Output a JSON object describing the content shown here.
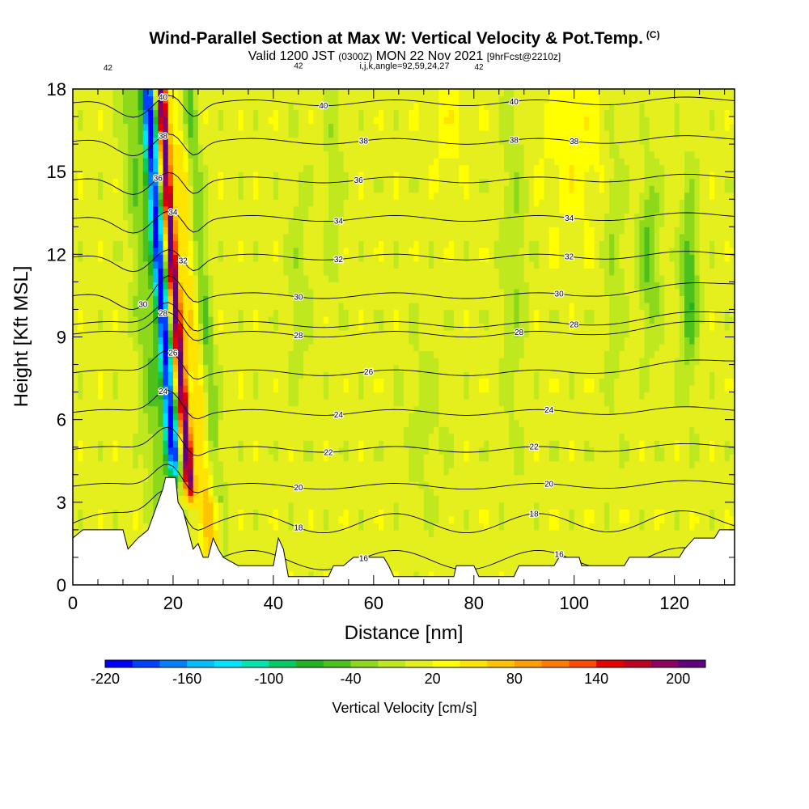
{
  "header": {
    "title": "Wind-Parallel Section at Max W: Vertical Velocity & Pot.Temp.",
    "title_mark": "(C)",
    "valid_prefix": "Valid 1200 JST",
    "valid_utc": "(0300Z)",
    "valid_date": "MON 22 Nov 2021",
    "forecast": "[9hrFcst@2210z]",
    "indices": "i,j,k,angle=92,59,24,27"
  },
  "chart_data": {
    "type": "heatmap",
    "xlabel": "Distance [nm]",
    "ylabel": "Height [Kft MSL]",
    "xlim": [
      0,
      132
    ],
    "ylim": [
      0,
      18
    ],
    "x_ticks": [
      0,
      20,
      40,
      60,
      80,
      100,
      120
    ],
    "y_ticks": [
      0,
      3,
      6,
      9,
      12,
      15,
      18
    ],
    "x_tick_labels": [
      "0",
      "20",
      "40",
      "60",
      "80",
      "100",
      "120"
    ],
    "y_tick_labels": [
      "0",
      "3",
      "6",
      "9",
      "12",
      "15",
      "18"
    ],
    "colorbar": {
      "label": "Vertical Velocity [cm/s]",
      "tick_labels": [
        "-220",
        "-160",
        "-100",
        "-40",
        "20",
        "80",
        "140",
        "200"
      ],
      "tick_values": [
        -220,
        -160,
        -100,
        -40,
        20,
        80,
        140,
        200
      ],
      "min": -220,
      "max": 220,
      "colors": [
        "#0000ff",
        "#0040ff",
        "#0080ff",
        "#00bfff",
        "#00e5ff",
        "#00e5b0",
        "#00cc66",
        "#22b222",
        "#4cc01c",
        "#8ed81c",
        "#c0e81e",
        "#e6ef1e",
        "#ffff00",
        "#ffe400",
        "#ffc400",
        "#ff9f00",
        "#ff7a00",
        "#ff4a00",
        "#e60000",
        "#c00020",
        "#900060",
        "#600080"
      ]
    },
    "theta_contours": [
      {
        "value": 16,
        "label": "16",
        "labels_at": [
          58,
          97
        ]
      },
      {
        "value": 18,
        "label": "18",
        "labels_at": [
          45,
          92
        ]
      },
      {
        "value": 20,
        "label": "20",
        "labels_at": [
          45,
          95
        ]
      },
      {
        "value": 22,
        "label": "22",
        "labels_at": [
          51,
          92
        ]
      },
      {
        "value": 24,
        "label": "24",
        "labels_at": [
          18,
          53,
          95
        ]
      },
      {
        "value": 26,
        "label": "26",
        "labels_at": [
          20,
          59
        ]
      },
      {
        "value": 28,
        "label": "28",
        "labels_at": [
          18,
          45,
          89
        ]
      },
      {
        "value": 28,
        "label": "28",
        "labels_at": [
          100
        ]
      },
      {
        "value": 30,
        "label": "30",
        "labels_at": [
          14,
          45,
          97
        ]
      },
      {
        "value": 32,
        "label": "32",
        "labels_at": [
          22,
          53,
          99
        ]
      },
      {
        "value": 34,
        "label": "34",
        "labels_at": [
          20,
          53,
          99
        ]
      },
      {
        "value": 36,
        "label": "36",
        "labels_at": [
          17,
          57
        ]
      },
      {
        "value": 38,
        "label": "38",
        "labels_at": [
          18,
          58,
          88,
          100
        ]
      },
      {
        "value": 40,
        "label": "40",
        "labels_at": [
          18,
          50,
          88
        ]
      },
      {
        "value": 42,
        "label": "42",
        "labels_at": [
          7,
          45,
          81
        ]
      }
    ],
    "terrain_profile": [
      [
        0,
        1.7
      ],
      [
        2,
        2.0
      ],
      [
        10,
        2.0
      ],
      [
        11,
        1.3
      ],
      [
        13,
        1.7
      ],
      [
        15,
        2.0
      ],
      [
        16,
        2.5
      ],
      [
        17,
        3.0
      ],
      [
        18,
        3.5
      ],
      [
        18.5,
        3.9
      ],
      [
        20.5,
        3.9
      ],
      [
        21,
        3.0
      ],
      [
        22,
        2.7
      ],
      [
        23,
        2.0
      ],
      [
        24,
        1.3
      ],
      [
        25,
        1.5
      ],
      [
        26,
        1.0
      ],
      [
        27,
        1.0
      ],
      [
        28,
        1.7
      ],
      [
        29,
        1.3
      ],
      [
        30,
        1.0
      ],
      [
        33,
        0.7
      ],
      [
        40,
        0.7
      ],
      [
        41,
        1.7
      ],
      [
        42,
        1.3
      ],
      [
        43,
        0.3
      ],
      [
        51,
        0.3
      ],
      [
        52,
        0.7
      ],
      [
        54,
        0.7
      ],
      [
        56,
        1.0
      ],
      [
        62,
        1.0
      ],
      [
        63,
        0.7
      ],
      [
        64,
        0.3
      ],
      [
        76,
        0.3
      ],
      [
        76.5,
        0.7
      ],
      [
        80,
        0.7
      ],
      [
        81,
        0.3
      ],
      [
        88,
        0.3
      ],
      [
        89,
        0.7
      ],
      [
        96,
        0.7
      ],
      [
        97,
        1.0
      ],
      [
        101,
        1.0
      ],
      [
        101.5,
        0.7
      ],
      [
        110,
        0.7
      ],
      [
        111,
        1.0
      ],
      [
        121,
        1.0
      ],
      [
        122,
        1.3
      ],
      [
        124,
        1.7
      ],
      [
        128,
        1.7
      ],
      [
        129,
        2.0
      ],
      [
        132,
        2.0
      ]
    ]
  }
}
